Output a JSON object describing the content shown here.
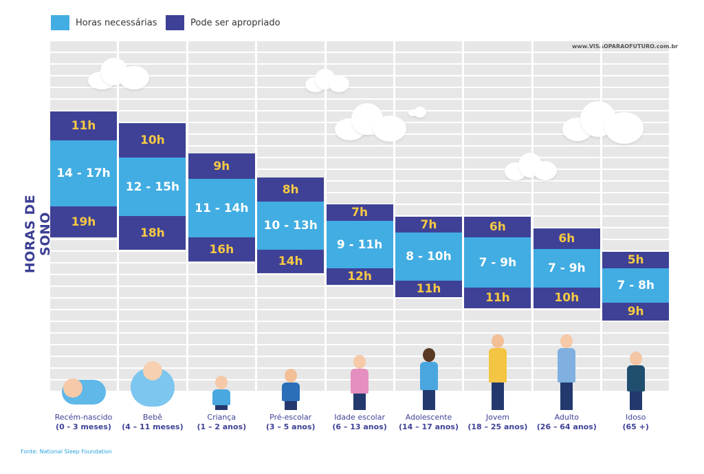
{
  "legend": [
    {
      "label": "Horas necessárias",
      "color": "#41ade2"
    },
    {
      "label": "Pode ser apropriado",
      "color": "#3f4196"
    }
  ],
  "watermark": "www.VISÃOPARAOFUTURO.com.br",
  "source": "Fonte: National Sleep Foundation",
  "chart_data": {
    "type": "table",
    "title": "",
    "ylabel": "HORAS DE SONO",
    "categories": [
      {
        "name": "Recém-nascido",
        "range": "(0 - 3 meses)",
        "recommended": "14 - 17h",
        "upper": "11h",
        "lower": "19h"
      },
      {
        "name": "Bebê",
        "range": "(4 – 11 meses)",
        "recommended": "12 - 15h",
        "upper": "10h",
        "lower": "18h"
      },
      {
        "name": "Criança",
        "range": "(1 – 2 anos)",
        "recommended": "11 - 14h",
        "upper": "9h",
        "lower": "16h"
      },
      {
        "name": "Pré-escolar",
        "range": "(3 – 5 anos)",
        "recommended": "10 - 13h",
        "upper": "8h",
        "lower": "14h"
      },
      {
        "name": "Idade escolar",
        "range": "(6 – 13 anos)",
        "recommended": "9 - 11h",
        "upper": "7h",
        "lower": "12h"
      },
      {
        "name": "Adolescente",
        "range": "(14 – 17 anos)",
        "recommended": "8 - 10h",
        "upper": "7h",
        "lower": "11h"
      },
      {
        "name": "Jovem",
        "range": "(18 – 25 anos)",
        "recommended": "7 - 9h",
        "upper": "6h",
        "lower": "11h"
      },
      {
        "name": "Adulto",
        "range": "(26 – 64 anos)",
        "recommended": "7 - 9h",
        "upper": "6h",
        "lower": "10h"
      },
      {
        "name": "Idoso",
        "range": "(65 +)",
        "recommended": "7 - 8h",
        "upper": "5h",
        "lower": "9h"
      }
    ]
  }
}
